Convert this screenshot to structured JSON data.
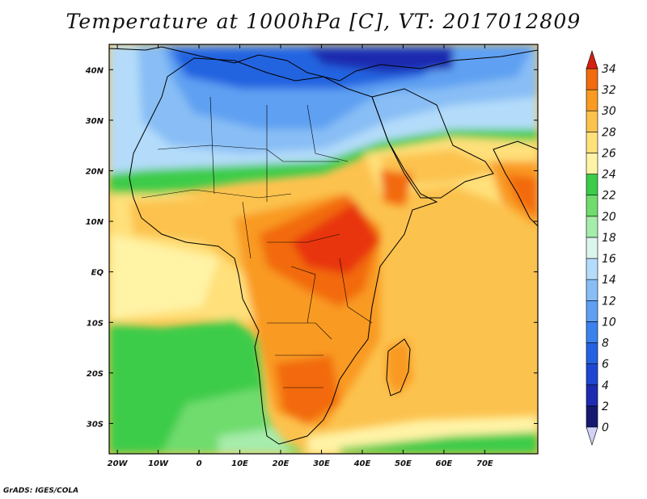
{
  "title": "Temperature at 1000hPa [C], VT: 2017012809",
  "credit": "GrADS: IGES/COLA",
  "map": {
    "projection": "lat-lon",
    "lon_range": [
      -22,
      83
    ],
    "lat_range": [
      -36,
      45
    ],
    "x_ticks": [
      {
        "lon": -20,
        "label": "20W"
      },
      {
        "lon": -10,
        "label": "10W"
      },
      {
        "lon": 0,
        "label": "0"
      },
      {
        "lon": 10,
        "label": "10E"
      },
      {
        "lon": 20,
        "label": "20E"
      },
      {
        "lon": 30,
        "label": "30E"
      },
      {
        "lon": 40,
        "label": "40E"
      },
      {
        "lon": 50,
        "label": "50E"
      },
      {
        "lon": 60,
        "label": "60E"
      },
      {
        "lon": 70,
        "label": "70E"
      }
    ],
    "y_ticks": [
      {
        "lat": 40,
        "label": "40N"
      },
      {
        "lat": 30,
        "label": "30N"
      },
      {
        "lat": 20,
        "label": "20N"
      },
      {
        "lat": 10,
        "label": "10N"
      },
      {
        "lat": 0,
        "label": "EQ"
      },
      {
        "lat": -10,
        "label": "10S"
      },
      {
        "lat": -20,
        "label": "20S"
      },
      {
        "lat": -30,
        "label": "30S"
      }
    ]
  },
  "colorbar": {
    "levels": [
      0,
      2,
      4,
      6,
      8,
      10,
      12,
      14,
      16,
      18,
      20,
      22,
      24,
      26,
      28,
      30,
      32,
      34
    ],
    "labels": [
      "0",
      "2",
      "4",
      "6",
      "8",
      "10",
      "12",
      "14",
      "16",
      "18",
      "20",
      "22",
      "24",
      "26",
      "28",
      "30",
      "32",
      "34"
    ],
    "colors": [
      "#151a6e",
      "#1e2bb0",
      "#1e46d2",
      "#2463e0",
      "#3c82ec",
      "#5fa0f2",
      "#88bef5",
      "#b4dcfa",
      "#dcf4ee",
      "#a6ecaa",
      "#70dc6e",
      "#3ccc48",
      "#fff3a6",
      "#ffe07a",
      "#fcc24e",
      "#f99a22",
      "#f26b0e",
      "#e8360a"
    ],
    "under_color": "#d2d2f7",
    "over_color": "#d62010"
  }
}
